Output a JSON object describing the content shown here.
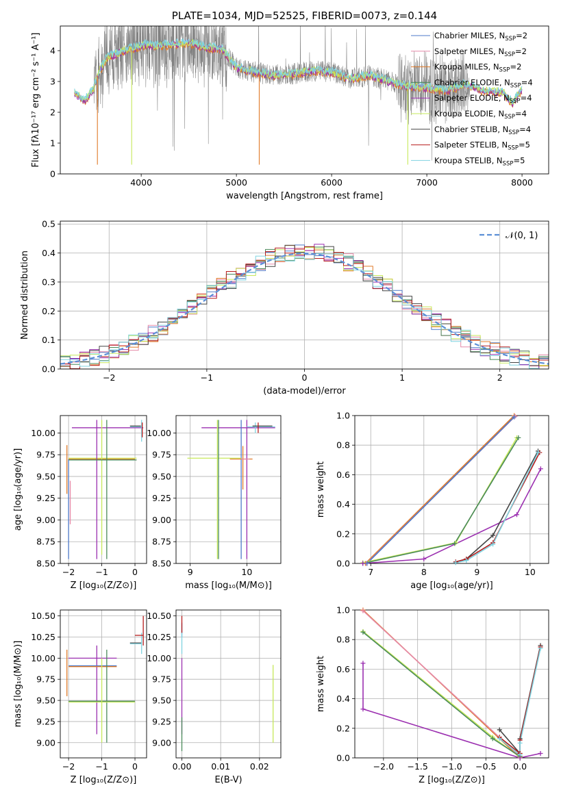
{
  "colors": {
    "chabrier_miles": "#4c78c8",
    "salpeter_miles": "#e589a8",
    "kroupa_miles": "#e07a28",
    "chabrier_elodie": "#4a8a5a",
    "salpeter_elodie": "#9b2fb0",
    "kroupa_elodie": "#c6e85a",
    "chabrier_stelib": "#444444",
    "salpeter_stelib": "#b71c1c",
    "kroupa_stelib": "#7fd3e0",
    "gaussian": "#5b8fd6",
    "observed": "#808080"
  },
  "chart_data": [
    {
      "type": "line",
      "title": "PLATE=1034, MJD=52525, FIBERID=0073, z=0.144",
      "xlabel": "wavelength [Angstrom, rest frame]",
      "ylabel": "Flux [fλ10⁻¹⁷ erg cm⁻² s⁻¹ A⁻¹]",
      "xlim": [
        3150,
        8280
      ],
      "ylim": [
        0,
        4.8
      ],
      "xticks": [
        4000,
        5000,
        6000,
        7000,
        8000
      ],
      "yticks": [
        0,
        1,
        2,
        3,
        4
      ],
      "legend_position": "upper-right",
      "legend": [
        "Chabrier MILES, N_SSP=2",
        "Salpeter MILES, N_SSP=2",
        "Kroupa MILES, N_SSP=2",
        "Chabrier ELODIE, N_SSP=4",
        "Salpeter ELODIE, N_SSP=4",
        "Kroupa ELODIE, N_SSP=4",
        "Chabrier STELIB, N_SSP=4",
        "Salpeter STELIB, N_SSP=5",
        "Kroupa STELIB, N_SSP=5"
      ],
      "legend_keys": [
        "chabrier_miles",
        "salpeter_miles",
        "kroupa_miles",
        "chabrier_elodie",
        "salpeter_elodie",
        "kroupa_elodie",
        "chabrier_stelib",
        "salpeter_stelib",
        "kroupa_stelib"
      ],
      "model_continuum": {
        "x": [
          3300,
          3400,
          3500,
          3550,
          3650,
          3750,
          3850,
          3950,
          4050,
          4150,
          4300,
          4500,
          4700,
          4850,
          5000,
          5200,
          5400,
          5600,
          5800,
          6000,
          6200,
          6400,
          6600,
          6800,
          7000,
          7200,
          7400,
          7600,
          7800,
          7900,
          8000
        ],
        "y": [
          2.65,
          2.35,
          2.75,
          3.3,
          3.8,
          3.9,
          4.05,
          4.1,
          4.2,
          4.15,
          4.2,
          4.25,
          4.1,
          4.05,
          3.45,
          3.3,
          3.2,
          3.25,
          3.35,
          3.3,
          3.1,
          3.2,
          3.0,
          2.85,
          2.8,
          2.7,
          2.9,
          2.7,
          2.65,
          2.3,
          2.75
        ]
      }
    },
    {
      "type": "step",
      "xlabel": "(data-model)/error",
      "ylabel": "Normed distribution",
      "xlim": [
        -2.5,
        2.5
      ],
      "ylim": [
        0,
        0.51
      ],
      "xticks": [
        -2,
        -1,
        0,
        1,
        2
      ],
      "yticks": [
        0.0,
        0.1,
        0.2,
        0.3,
        0.4,
        0.5
      ],
      "legend_position": "upper-right",
      "gaussian_label": "𝒩(0, 1)",
      "bin_width": 0.1
    },
    {
      "type": "errorbar",
      "xlabel": "Z [log₁₀(Z/Z⊙)]",
      "ylabel": "age  [log₁₀(age/yr)]",
      "xlim": [
        -2.25,
        0.35
      ],
      "ylim": [
        8.5,
        10.2
      ],
      "xticks": [
        -2,
        -1,
        0
      ],
      "yticks": [
        8.5,
        8.75,
        9.0,
        9.25,
        9.5,
        9.75,
        10.0
      ],
      "segments": [
        {
          "c": "salpeter_elodie",
          "h": [
            -1.9,
            0.25,
            10.06
          ]
        },
        {
          "c": "kroupa_stelib",
          "h": [
            -0.15,
            0.2,
            10.07
          ],
          "v": [
            0.2,
            9.9,
            10.15
          ]
        },
        {
          "c": "chabrier_stelib",
          "h": [
            -0.15,
            0.18,
            10.08
          ]
        },
        {
          "c": "salpeter_stelib",
          "v": [
            0.22,
            9.95,
            10.12
          ]
        },
        {
          "c": "chabrier_miles",
          "v": [
            -2.0,
            8.55,
            9.7
          ]
        },
        {
          "c": "kroupa_miles",
          "h": [
            -2.0,
            0.0,
            9.7
          ],
          "v": [
            -2.05,
            9.3,
            9.86
          ]
        },
        {
          "c": "salpeter_miles",
          "v": [
            -1.95,
            8.95,
            9.45
          ]
        },
        {
          "c": "kroupa_elodie",
          "h": [
            -2.0,
            0.05,
            9.71
          ],
          "v": [
            -1.0,
            8.6,
            10.15
          ]
        },
        {
          "c": "salpeter_elodie",
          "v": [
            -1.15,
            8.55,
            10.15
          ]
        },
        {
          "c": "chabrier_elodie",
          "h": [
            -2.0,
            0.05,
            9.69
          ],
          "v": [
            -0.85,
            8.55,
            10.15
          ]
        }
      ]
    },
    {
      "type": "errorbar",
      "xlabel": "mass [log₁₀(M/M⊙)]",
      "ylabel": "",
      "xlim": [
        8.75,
        10.6
      ],
      "ylim": [
        8.5,
        10.2
      ],
      "xticks": [
        9,
        10
      ],
      "yticks": [
        8.5,
        8.75,
        9.0,
        9.25,
        9.5,
        9.75,
        10.0
      ],
      "segments": [
        {
          "c": "salpeter_elodie",
          "h": [
            9.2,
            10.5,
            10.06
          ],
          "v": [
            10.0,
            8.55,
            10.15
          ]
        },
        {
          "c": "kroupa_stelib",
          "h": [
            10.0,
            10.5,
            10.07
          ],
          "v": [
            10.15,
            10.0,
            10.12
          ]
        },
        {
          "c": "chabrier_stelib",
          "h": [
            10.1,
            10.45,
            10.08
          ]
        },
        {
          "c": "salpeter_stelib",
          "v": [
            10.2,
            10.0,
            10.12
          ]
        },
        {
          "c": "chabrier_miles",
          "v": [
            9.9,
            8.55,
            10.15
          ]
        },
        {
          "c": "kroupa_miles",
          "h": [
            9.7,
            10.1,
            9.7
          ],
          "v": [
            9.93,
            9.35,
            9.85
          ]
        },
        {
          "c": "salpeter_miles",
          "h": [
            9.9,
            10.05,
            9.7
          ]
        },
        {
          "c": "kroupa_elodie",
          "h": [
            8.95,
            9.9,
            9.71
          ],
          "v": [
            9.48,
            8.55,
            10.15
          ]
        },
        {
          "c": "chabrier_elodie",
          "v": [
            9.5,
            8.55,
            10.15
          ]
        }
      ]
    },
    {
      "type": "line",
      "xlabel": "age  [log₁₀(age/yr)]",
      "ylabel": "mass weight",
      "xlim": [
        6.7,
        10.35
      ],
      "ylim": [
        0,
        1.0
      ],
      "xticks": [
        7,
        8,
        9,
        10
      ],
      "yticks": [
        0.0,
        0.2,
        0.4,
        0.6,
        0.8,
        1.0
      ],
      "series": [
        {
          "c": "kroupa_miles",
          "x": [
            6.9,
            9.7
          ],
          "y": [
            0.0,
            1.0
          ]
        },
        {
          "c": "salpeter_miles",
          "x": [
            6.92,
            9.72
          ],
          "y": [
            0.0,
            0.995
          ]
        },
        {
          "c": "chabrier_miles",
          "x": [
            6.93,
            9.7
          ],
          "y": [
            0.0,
            0.99
          ]
        },
        {
          "c": "kroupa_elodie",
          "x": [
            6.85,
            8.6,
            9.75
          ],
          "y": [
            0.005,
            0.14,
            0.85
          ]
        },
        {
          "c": "chabrier_elodie",
          "x": [
            6.85,
            8.58,
            9.78
          ],
          "y": [
            0.0,
            0.135,
            0.85
          ]
        },
        {
          "c": "salpeter_elodie",
          "x": [
            6.85,
            8.0,
            9.75,
            10.2
          ],
          "y": [
            0.0,
            0.03,
            0.33,
            0.64
          ]
        },
        {
          "c": "chabrier_stelib",
          "x": [
            8.6,
            8.8,
            9.3,
            10.15
          ],
          "y": [
            0.01,
            0.03,
            0.19,
            0.76
          ]
        },
        {
          "c": "salpeter_stelib",
          "x": [
            8.6,
            8.8,
            9.3,
            10.18
          ],
          "y": [
            0.01,
            0.03,
            0.14,
            0.75
          ]
        },
        {
          "c": "kroupa_stelib",
          "x": [
            8.6,
            8.8,
            9.3,
            10.15
          ],
          "y": [
            0.005,
            0.02,
            0.13,
            0.75
          ]
        }
      ]
    },
    {
      "type": "errorbar",
      "xlabel": "Z [log₁₀(Z/Z⊙)]",
      "ylabel": "mass [log₁₀(M/M⊙)]",
      "xlim": [
        -2.25,
        0.35
      ],
      "ylim": [
        8.82,
        10.57
      ],
      "xticks": [
        -2,
        -1,
        0
      ],
      "yticks": [
        9.0,
        9.25,
        9.5,
        9.75,
        10.0,
        10.25,
        10.5
      ],
      "segments": [
        {
          "c": "salpeter_elodie",
          "h": [
            -2.0,
            -0.55,
            10.0
          ],
          "v": [
            -1.15,
            9.1,
            10.15
          ]
        },
        {
          "c": "chabrier_stelib",
          "h": [
            -0.15,
            0.2,
            10.18
          ]
        },
        {
          "c": "kroupa_stelib",
          "h": [
            -0.15,
            0.2,
            10.17
          ],
          "v": [
            0.2,
            10.05,
            10.3
          ]
        },
        {
          "c": "salpeter_stelib",
          "h": [
            0.0,
            0.25,
            10.27
          ],
          "v": [
            0.25,
            10.15,
            10.5
          ]
        },
        {
          "c": "chabrier_miles",
          "h": [
            -2.0,
            -0.55,
            9.91
          ]
        },
        {
          "c": "kroupa_miles",
          "h": [
            -2.0,
            -0.55,
            9.9
          ],
          "v": [
            -2.05,
            9.55,
            10.1
          ]
        },
        {
          "c": "chabrier_elodie",
          "h": [
            -2.0,
            0.0,
            9.49
          ],
          "v": [
            -0.85,
            9.0,
            10.1
          ]
        },
        {
          "c": "kroupa_elodie",
          "h": [
            -2.0,
            0.0,
            9.48
          ],
          "v": [
            -1.0,
            9.0,
            10.0
          ]
        }
      ]
    },
    {
      "type": "errorbar",
      "xlabel": "E(B-V)",
      "ylabel": "",
      "xlim": [
        -0.0015,
        0.0255
      ],
      "ylim": [
        8.82,
        10.57
      ],
      "xticks": [
        0.0,
        0.01,
        0.02
      ],
      "yticks": [
        9.0,
        9.25,
        9.5,
        9.75,
        10.0,
        10.25,
        10.5
      ],
      "xtick_labels": [
        "0.00",
        "0.01",
        "0.02"
      ],
      "segments": [
        {
          "c": "chabrier_miles",
          "v": [
            0.0,
            10.25,
            10.42
          ]
        },
        {
          "c": "kroupa_stelib",
          "v": [
            0.0,
            10.05,
            10.4
          ]
        },
        {
          "c": "salpeter_stelib",
          "v": [
            0.0,
            10.3,
            10.5
          ]
        },
        {
          "c": "salpeter_elodie",
          "v": [
            0.0,
            9.1,
            10.0
          ]
        },
        {
          "c": "chabrier_elodie",
          "v": [
            0.0,
            8.9,
            9.3
          ]
        },
        {
          "c": "kroupa_elodie",
          "v": [
            0.0235,
            9.0,
            9.92
          ]
        }
      ]
    },
    {
      "type": "line",
      "xlabel": "Z [log₁₀(Z/Z⊙)]",
      "ylabel": "mass weight",
      "xlim": [
        -2.42,
        0.42
      ],
      "ylim": [
        0,
        1.0
      ],
      "xticks": [
        -2.0,
        -1.5,
        -1.0,
        -0.5,
        0.0
      ],
      "yticks": [
        0.0,
        0.2,
        0.4,
        0.6,
        0.8,
        1.0
      ],
      "series": [
        {
          "c": "kroupa_miles",
          "x": [
            -2.3,
            0.0
          ],
          "y": [
            1.0,
            0.0
          ]
        },
        {
          "c": "salpeter_miles",
          "x": [
            -2.3,
            0.0
          ],
          "y": [
            0.995,
            0.01
          ]
        },
        {
          "c": "kroupa_elodie",
          "x": [
            -2.3,
            -0.4,
            0.0
          ],
          "y": [
            0.855,
            0.14,
            0.005
          ]
        },
        {
          "c": "chabrier_elodie",
          "x": [
            -2.3,
            -0.4,
            0.0
          ],
          "y": [
            0.85,
            0.13,
            0.01
          ]
        },
        {
          "c": "chabrier_stelib",
          "x": [
            -0.3,
            0.0,
            0.0,
            0.3
          ],
          "y": [
            0.19,
            0.03,
            0.13,
            0.76
          ]
        },
        {
          "c": "salpeter_stelib",
          "x": [
            -0.3,
            0.0,
            0.0,
            0.3
          ],
          "y": [
            0.14,
            0.03,
            0.12,
            0.75
          ]
        },
        {
          "c": "kroupa_stelib",
          "x": [
            -0.3,
            0.0,
            0.0,
            0.3
          ],
          "y": [
            0.13,
            0.02,
            0.1,
            0.74
          ]
        },
        {
          "c": "salpeter_elodie",
          "x": [
            -2.3,
            -2.3,
            0.0,
            0.3
          ],
          "y": [
            0.64,
            0.33,
            0.0,
            0.03
          ]
        }
      ]
    }
  ]
}
